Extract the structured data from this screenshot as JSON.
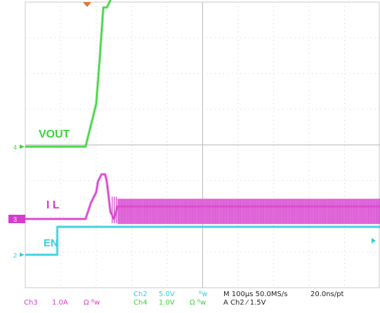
{
  "chart_data": {
    "type": "line",
    "grid": true,
    "grid_divisions": {
      "x": 10,
      "y": 8
    },
    "x_scale_per_div": "100µs",
    "traces": [
      {
        "name": "VOUT",
        "channel": 4,
        "color": "#3cd23c",
        "marker": "4",
        "x_div": [
          0,
          1.7,
          2.0,
          2.1,
          2.2,
          2.3,
          2.4,
          2.5,
          2.6,
          3.0,
          3.5,
          4.5,
          6,
          10
        ],
        "y_div": [
          0,
          0,
          1.2,
          2.5,
          3.9,
          3.9,
          4.1,
          4.6,
          5.1,
          5.35,
          5.45,
          5.5,
          5.5,
          5.5
        ]
      },
      {
        "name": "IL",
        "channel": 3,
        "color": "#d63ccd",
        "marker": "3",
        "x_div": [
          0,
          1.7,
          1.85,
          2.0,
          2.05,
          2.15,
          2.25,
          2.3,
          2.4,
          2.5,
          2.6,
          10
        ],
        "y_div": [
          0,
          0,
          0.45,
          0.75,
          1.05,
          1.25,
          1.25,
          1.05,
          0.2,
          0,
          0.35,
          0.35
        ],
        "ripple_from_div": 2.6
      },
      {
        "name": "EN",
        "channel": 2,
        "color": "#33cfdc",
        "marker": "2",
        "x_div": [
          0,
          0.9,
          0.9,
          10
        ],
        "y_div": [
          0,
          0,
          0.78,
          0.78
        ]
      }
    ],
    "labels": [
      {
        "text": "VOUT",
        "color": "#3cd23c"
      },
      {
        "text": "I L",
        "color": "#d63ccd"
      },
      {
        "text": "EN",
        "color": "#33cfdc"
      }
    ]
  },
  "status": {
    "ch3": "Ch3",
    "ch3_scale": "1.0A",
    "ch3_coupling": "Ω ᴮw",
    "ch2": "Ch2",
    "ch2_scale": "5.0V",
    "ch2_bw": "ᴮw",
    "ch4": "Ch4",
    "ch4_scale": "1.0V",
    "ch4_coupling": "Ω ᴮw",
    "timebase": "M 100µs 50.0MS/s",
    "record": "20.0ns/pt",
    "trigger": "A  Ch2  ⁄  1.5V"
  }
}
